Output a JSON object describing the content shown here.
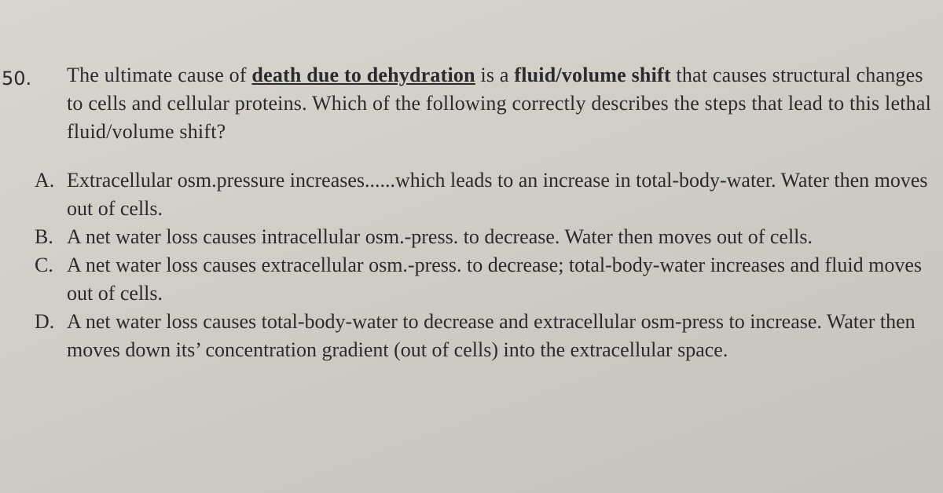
{
  "question": {
    "number": "50.",
    "stem": [
      "The ultimate cause of ",
      "death due to dehydration",
      " is a ",
      "fluid/volume shift",
      " that causes structural changes to cells and cellular proteins.  Which of the following correctly describes the steps that lead to this lethal fluid/volume shift?"
    ],
    "options": [
      {
        "letter": "A.",
        "text": "Extracellular osm.pressure increases......which leads to an increase in total-body-water. Water then moves out of cells."
      },
      {
        "letter": "B.",
        "text": "A net water loss causes intracellular osm.-press. to decrease.  Water then moves out of cells."
      },
      {
        "letter": "C.",
        "text": "A net water loss causes extracellular osm.-press. to decrease; total-body-water increases and fluid moves out of cells."
      },
      {
        "letter": "D.",
        "text": "A net water loss causes total-body-water to decrease and extracellular osm-press to increase.  Water then moves down its’ concentration gradient (out of cells) into the extracellular space."
      }
    ]
  }
}
